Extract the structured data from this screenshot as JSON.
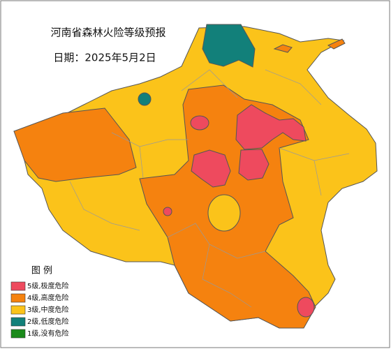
{
  "map": {
    "title": "河南省森林火险等级预报",
    "date": "日期：2025年5月2日",
    "legend": {
      "title": "图 例",
      "items": [
        {
          "label": "5级,极度危险",
          "color": "#ee4a5e"
        },
        {
          "label": "4级,高度危险",
          "color": "#f5820f"
        },
        {
          "label": "3级,中度危险",
          "color": "#fbc31a"
        },
        {
          "label": "2级,低度危险",
          "color": "#12807a"
        },
        {
          "label": "1级,没有危险",
          "color": "#1a8a1a"
        }
      ]
    }
  }
}
